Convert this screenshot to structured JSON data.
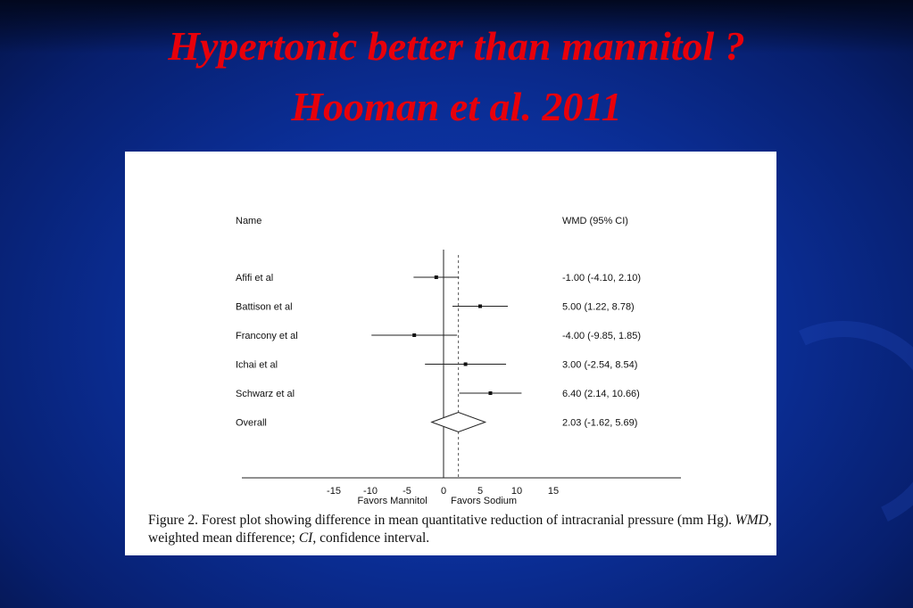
{
  "slide": {
    "title_line1": "Hypertonic better than mannitol ?",
    "title_line2": "Hooman et al. 2011",
    "background_color": "#0b2f99",
    "title_color": "#e8000a"
  },
  "chart_data": {
    "type": "forest",
    "column_headers": {
      "name": "Name",
      "estimate": "WMD (95% CI)"
    },
    "studies": [
      {
        "name": "Afifi et al",
        "wmd": -1.0,
        "ci": [
          -4.1,
          2.1
        ],
        "label": "-1.00 (-4.10, 2.10)"
      },
      {
        "name": "Battison et al",
        "wmd": 5.0,
        "ci": [
          1.22,
          8.78
        ],
        "label": "5.00 (1.22, 8.78)"
      },
      {
        "name": "Francony et al",
        "wmd": -4.0,
        "ci": [
          -9.85,
          1.85
        ],
        "label": "-4.00 (-9.85, 1.85)"
      },
      {
        "name": "Ichai et al",
        "wmd": 3.0,
        "ci": [
          -2.54,
          8.54
        ],
        "label": "3.00 (-2.54, 8.54)"
      },
      {
        "name": "Schwarz et al",
        "wmd": 6.4,
        "ci": [
          2.14,
          10.66
        ],
        "label": "6.40 (2.14, 10.66)"
      }
    ],
    "overall": {
      "name": "Overall",
      "wmd": 2.03,
      "ci": [
        -1.62,
        5.69
      ],
      "label": "2.03 (-1.62, 5.69)"
    },
    "x_ticks": [
      -15,
      -10,
      -5,
      0,
      5,
      10,
      15
    ],
    "x_tick_labels": [
      "-15",
      "-10",
      "-5",
      "0",
      "5",
      "10",
      "15"
    ],
    "xlim": [
      -15,
      15
    ],
    "null_line": 0,
    "favors_left": "Favors Mannitol",
    "favors_right": "Favors Sodium",
    "caption": {
      "prefix": "Figure 2.   Forest plot showing difference in mean quantitative reduction of intracranial pressure (mm Hg). ",
      "wmd_abbr": "WMD",
      "wmd_text": ", weighted mean difference; ",
      "ci_abbr": "CI",
      "ci_text": ", confidence interval."
    }
  }
}
